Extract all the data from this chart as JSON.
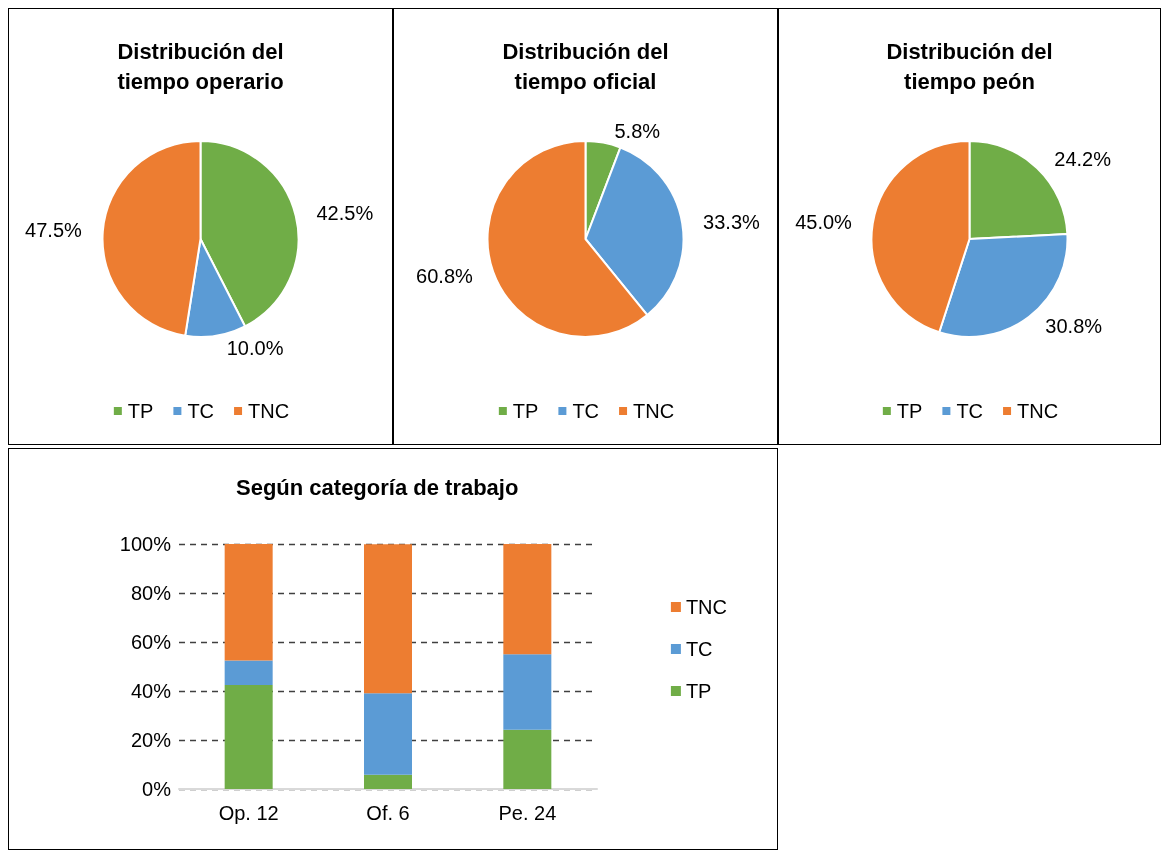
{
  "chart_data": [
    {
      "type": "pie",
      "title": "Distribución del\ntiempo operario",
      "categories": [
        "TP",
        "TC",
        "TNC"
      ],
      "values": [
        42.5,
        10.0,
        47.5
      ],
      "colors": [
        "#70ad47",
        "#5b9bd5",
        "#ed7d31"
      ],
      "value_labels": [
        "42.5%",
        "10.0%",
        "47.5%"
      ],
      "legend": "bottom"
    },
    {
      "type": "pie",
      "title": "Distribución del\ntiempo oficial",
      "categories": [
        "TP",
        "TC",
        "TNC"
      ],
      "values": [
        5.8,
        33.3,
        60.8
      ],
      "colors": [
        "#70ad47",
        "#5b9bd5",
        "#ed7d31"
      ],
      "value_labels": [
        "5.8%",
        "33.3%",
        "60.8%"
      ],
      "legend": "bottom"
    },
    {
      "type": "pie",
      "title": "Distribución del\ntiempo peón",
      "categories": [
        "TP",
        "TC",
        "TNC"
      ],
      "values": [
        24.2,
        30.8,
        45.0
      ],
      "colors": [
        "#70ad47",
        "#5b9bd5",
        "#ed7d31"
      ],
      "value_labels": [
        "24.2%",
        "30.8%",
        "45.0%"
      ],
      "legend": "bottom"
    },
    {
      "type": "bar",
      "title": "Según categoría de trabajo",
      "stacked": true,
      "categories": [
        "Op. 12",
        "Of. 6",
        "Pe. 24"
      ],
      "series": [
        {
          "name": "TP",
          "color": "#70ad47",
          "values": [
            42.5,
            5.8,
            24.2
          ]
        },
        {
          "name": "TC",
          "color": "#5b9bd5",
          "values": [
            10.0,
            33.3,
            30.8
          ]
        },
        {
          "name": "TNC",
          "color": "#ed7d31",
          "values": [
            47.5,
            60.8,
            45.0
          ]
        }
      ],
      "ylim": [
        0,
        100
      ],
      "yticks": [
        {
          "value": 0,
          "label": "0%"
        },
        {
          "value": 20,
          "label": "20%"
        },
        {
          "value": 40,
          "label": "40%"
        },
        {
          "value": 60,
          "label": "60%"
        },
        {
          "value": 80,
          "label": "80%"
        },
        {
          "value": 100,
          "label": "100%"
        }
      ],
      "grid": "y",
      "legend": "right"
    }
  ]
}
